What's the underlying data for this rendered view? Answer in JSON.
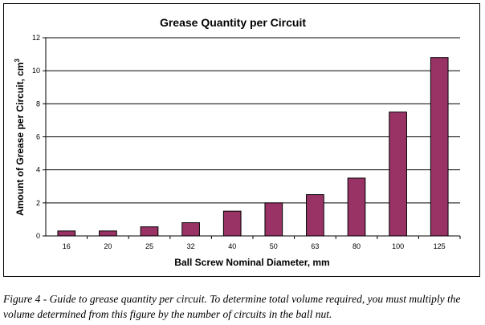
{
  "chart_data": {
    "type": "bar",
    "title": "Grease Quantity  per Circuit",
    "xlabel": "Ball Screw Nominal Diameter, mm",
    "ylabel": "Amount of Grease per Circuit, cm",
    "ylabel_superscript": "3",
    "categories": [
      "16",
      "20",
      "25",
      "32",
      "40",
      "50",
      "63",
      "80",
      "100",
      "125"
    ],
    "values": [
      0.3,
      0.3,
      0.55,
      0.8,
      1.5,
      2.0,
      2.5,
      3.5,
      7.5,
      10.8
    ],
    "ylim": [
      0,
      12
    ],
    "yticks": [
      "0",
      "2",
      "4",
      "6",
      "8",
      "10",
      "12"
    ],
    "grid": true,
    "bar_color": "#993366",
    "legend": "none"
  },
  "caption": "Figure 4 - Guide to grease quantity per circuit.  To determine total volume required, you must multiply the volume determined from this figure by the number of circuits in the ball nut."
}
